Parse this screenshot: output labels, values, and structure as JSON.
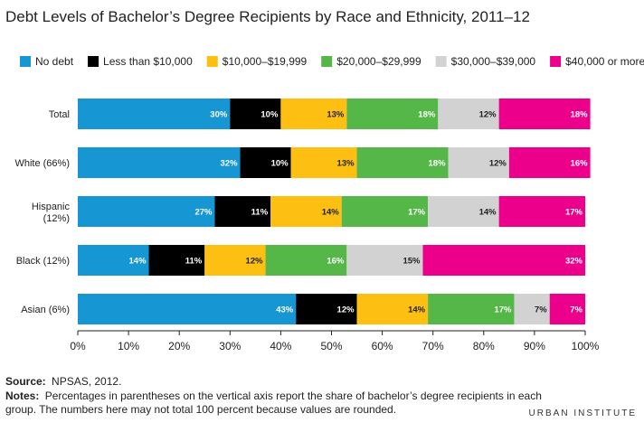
{
  "chart_data": {
    "type": "bar",
    "orientation": "horizontal",
    "stacked": true,
    "title": "Debt Levels of Bachelor’s Degree Recipients by Race and Ethnicity, 2011–12",
    "categories": [
      "Total",
      "White (66%)",
      "Hispanic (12%)",
      "Black (12%)",
      "Asian (6%)"
    ],
    "series": [
      {
        "name": "No debt",
        "color": "#1696d2",
        "values": [
          30,
          32,
          27,
          14,
          43
        ],
        "labels": [
          "30%",
          "32%",
          "27%",
          "14%",
          "43%"
        ],
        "label_color": "#ffffff"
      },
      {
        "name": "Less than $10,000",
        "color": "#000000",
        "values": [
          10,
          10,
          11,
          11,
          12
        ],
        "labels": [
          "10%",
          "10%",
          "11%",
          "11%",
          "12%"
        ],
        "label_color": "#ffffff"
      },
      {
        "name": "$10,000–$19,999",
        "color": "#fdbf11",
        "values": [
          13,
          13,
          14,
          12,
          14
        ],
        "labels": [
          "13%",
          "13%",
          "14%",
          "12%",
          "14%"
        ],
        "label_color": "#222222"
      },
      {
        "name": "$20,000–$29,999",
        "color": "#55b748",
        "values": [
          18,
          18,
          17,
          16,
          17
        ],
        "labels": [
          "18%",
          "18%",
          "17%",
          "16%",
          "17%"
        ],
        "label_color": "#ffffff"
      },
      {
        "name": "$30,000–$39,000",
        "color": "#d2d2d2",
        "values": [
          12,
          12,
          14,
          15,
          7
        ],
        "labels": [
          "12%",
          "12%",
          "14%",
          "15%",
          "7%"
        ],
        "label_color": "#222222"
      },
      {
        "name": "$40,000 or more",
        "color": "#ec008b",
        "values": [
          18,
          16,
          17,
          32,
          7
        ],
        "labels": [
          "18%",
          "16%",
          "17%",
          "32%",
          "7%"
        ],
        "label_color": "#ffffff"
      }
    ],
    "xlim": [
      0,
      100
    ],
    "xticks": [
      "0%",
      "10%",
      "20%",
      "30%",
      "40%",
      "50%",
      "60%",
      "70%",
      "80%",
      "90%",
      "100%"
    ],
    "xlabel": "",
    "ylabel": "",
    "grid": false,
    "legend_position": "top"
  },
  "footer": {
    "source_label": "Source:",
    "source_text": "NPSAS, 2012.",
    "notes_label": "Notes:",
    "notes_line1": "Percentages in parentheses on the vertical axis report the share of bachelor’s degree recipients in each",
    "notes_line2": "group. The numbers here may not total 100 percent because values are rounded."
  },
  "brand": {
    "name": "URBAN INSTITUTE"
  }
}
